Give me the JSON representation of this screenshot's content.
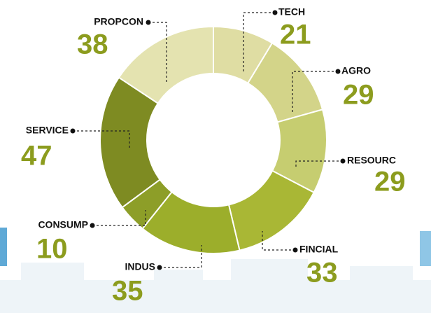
{
  "chart_data": {
    "type": "donut",
    "categories": [
      "TECH",
      "AGRO",
      "RESOURC",
      "FINCIAL",
      "INDUS",
      "CONSUMP",
      "SERVICE",
      "PROPCON"
    ],
    "values": [
      21,
      29,
      29,
      33,
      35,
      10,
      47,
      38
    ],
    "colors": [
      "#dfdda3",
      "#d3d489",
      "#c6cd70",
      "#a9b735",
      "#9cae2b",
      "#8d9e28",
      "#7e8b22",
      "#e4e3b0"
    ]
  }
}
